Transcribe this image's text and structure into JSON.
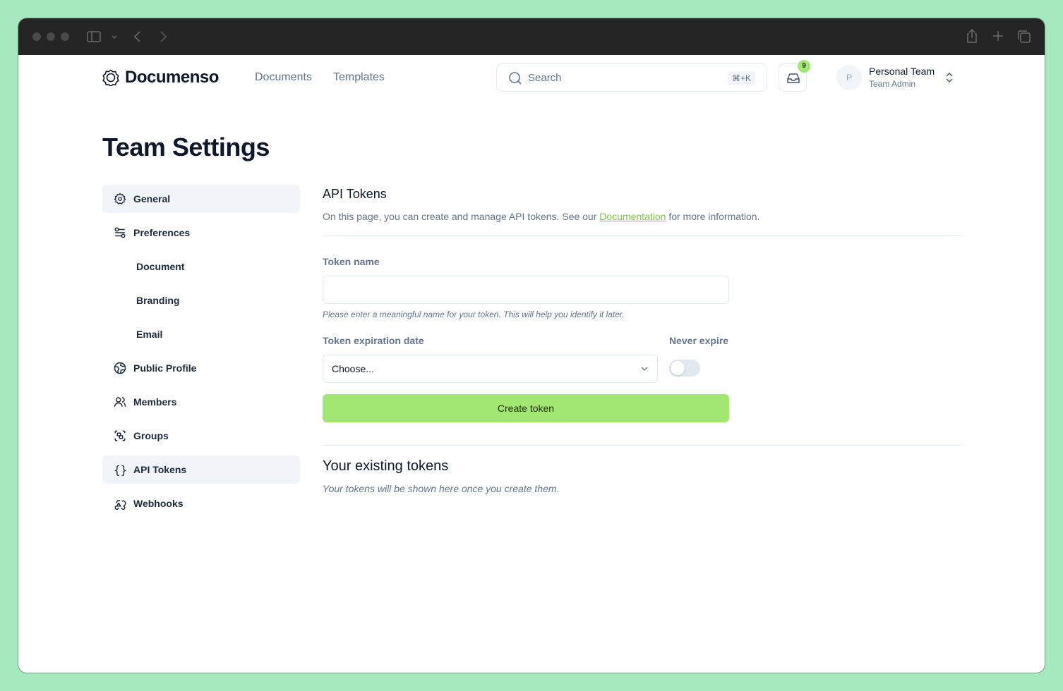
{
  "browser": {
    "icons": [
      "sidebar-icon",
      "chevron-down-icon",
      "back-icon",
      "forward-icon",
      "share-icon",
      "new-tab-icon",
      "tabs-icon"
    ]
  },
  "header": {
    "logo": "Documenso",
    "nav": [
      "Documents",
      "Templates"
    ],
    "search_placeholder": "Search",
    "search_shortcut": "⌘+K",
    "inbox_count": "9",
    "team_initial": "P",
    "team_name": "Personal Team",
    "team_role": "Team Admin"
  },
  "page_title": "Team Settings",
  "sidebar": {
    "items": [
      {
        "label": "General",
        "icon": "gear-icon",
        "active": true
      },
      {
        "label": "Preferences",
        "icon": "sliders-icon"
      },
      {
        "label": "Document",
        "sub": true
      },
      {
        "label": "Branding",
        "sub": true
      },
      {
        "label": "Email",
        "sub": true
      },
      {
        "label": "Public Profile",
        "icon": "globe-icon"
      },
      {
        "label": "Members",
        "icon": "users-icon"
      },
      {
        "label": "Groups",
        "icon": "group-icon"
      },
      {
        "label": "API Tokens",
        "icon": "braces-icon",
        "active": true
      },
      {
        "label": "Webhooks",
        "icon": "webhook-icon"
      }
    ]
  },
  "main": {
    "title": "API Tokens",
    "desc_before": "On this page, you can create and manage API tokens. See our ",
    "desc_link": "Documentation",
    "desc_after": " for more information.",
    "token_name_label": "Token name",
    "token_name_value": "",
    "token_name_hint": "Please enter a meaningful name for your token. This will help you identify it later.",
    "expiry_label": "Token expiration date",
    "expiry_value": "Choose...",
    "never_expire_label": "Never expire",
    "never_expire_on": false,
    "create_button": "Create token",
    "existing_title": "Your existing tokens",
    "existing_empty": "Your tokens will be shown here once you create them."
  },
  "colors": {
    "accent": "#a2e771",
    "link": "#7ac943",
    "background": "#a6e9bf"
  }
}
